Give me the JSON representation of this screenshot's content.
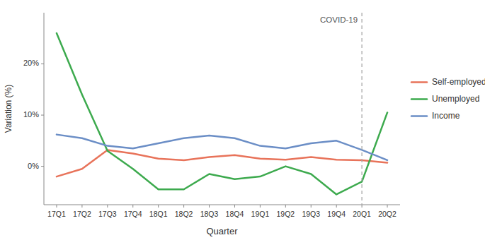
{
  "chart_data": {
    "type": "line",
    "categories": [
      "17Q1",
      "17Q2",
      "17Q3",
      "17Q4",
      "18Q1",
      "18Q2",
      "18Q3",
      "18Q4",
      "19Q1",
      "19Q2",
      "19Q3",
      "19Q4",
      "20Q1",
      "20Q2"
    ],
    "series": [
      {
        "name": "Self-employed",
        "color": "#E8735A",
        "values": [
          -2.0,
          -0.5,
          3.2,
          2.5,
          1.5,
          1.2,
          1.8,
          2.2,
          1.5,
          1.3,
          1.8,
          1.3,
          1.2,
          0.7
        ]
      },
      {
        "name": "Unemployed",
        "color": "#3DAA4E",
        "values": [
          26.0,
          14.0,
          3.0,
          -0.5,
          -4.5,
          -4.5,
          -1.5,
          -2.5,
          -2.0,
          0.0,
          -1.5,
          -5.5,
          -3.0,
          10.5
        ]
      },
      {
        "name": "Income",
        "color": "#6B8EC6",
        "values": [
          6.2,
          5.5,
          4.0,
          3.5,
          4.5,
          5.5,
          6.0,
          5.5,
          4.0,
          3.5,
          4.5,
          5.0,
          3.2,
          1.2
        ]
      }
    ],
    "x_label": "Quarter",
    "y_label": "Variation (%)",
    "ylim": [
      -7.5,
      30
    ],
    "yticks": [
      {
        "value": 0,
        "label": "0%"
      },
      {
        "value": 10,
        "label": "10%"
      },
      {
        "value": 20,
        "label": "20%"
      }
    ],
    "annotations": [
      {
        "text": "COVID-19",
        "x": "20Q1"
      }
    ],
    "grid": false,
    "legend": "right"
  }
}
